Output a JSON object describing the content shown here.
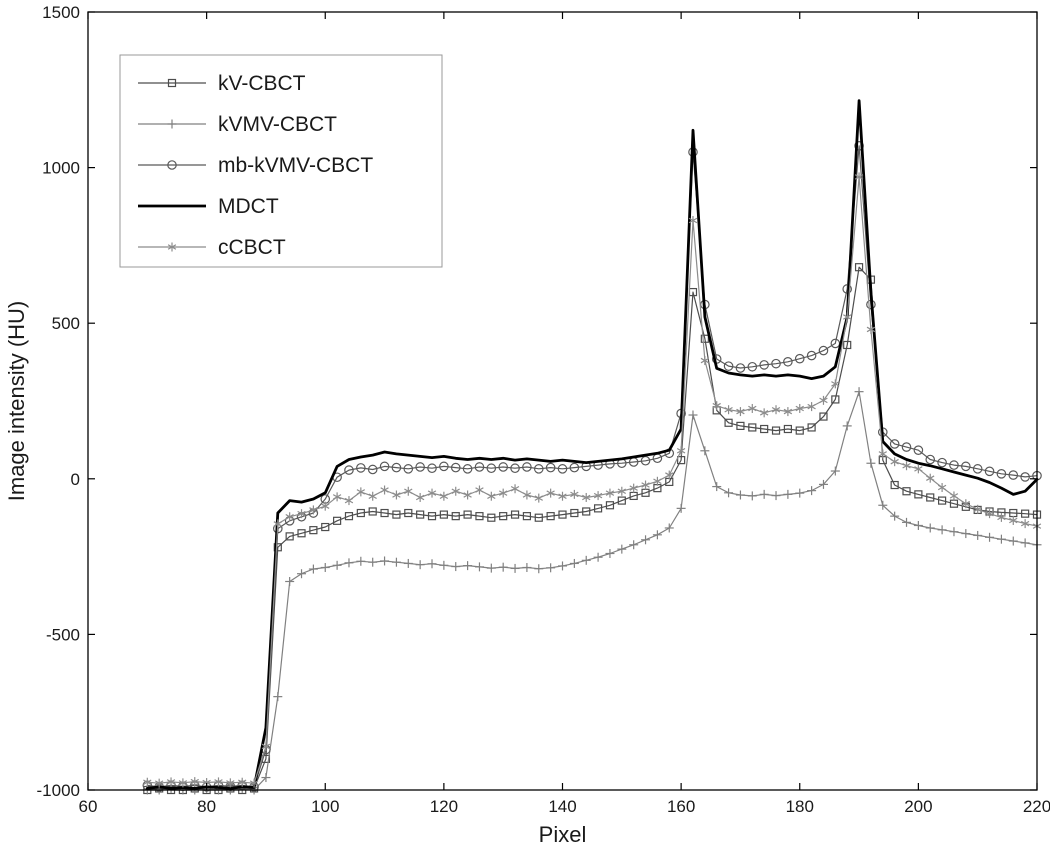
{
  "figure": {
    "background": "#ffffff",
    "text_color": "#1a1a1a",
    "box_color": "#000000",
    "legend_border_color": "#999999"
  },
  "chart_data": {
    "type": "line",
    "title": "",
    "xlabel": "Pixel",
    "ylabel": "Image intensity (HU)",
    "xlim": [
      60,
      220
    ],
    "ylim": [
      -1000,
      1500
    ],
    "xticks": [
      60,
      80,
      100,
      120,
      140,
      160,
      180,
      200,
      220
    ],
    "yticks": [
      -1000,
      -500,
      0,
      500,
      1000,
      1500
    ],
    "grid": false,
    "legend_position": "upper-left",
    "x": [
      70,
      72,
      74,
      76,
      78,
      80,
      82,
      84,
      86,
      88,
      90,
      92,
      94,
      96,
      98,
      100,
      102,
      104,
      106,
      108,
      110,
      112,
      114,
      116,
      118,
      120,
      122,
      124,
      126,
      128,
      130,
      132,
      134,
      136,
      138,
      140,
      142,
      144,
      146,
      148,
      150,
      152,
      154,
      156,
      158,
      160,
      162,
      164,
      166,
      168,
      170,
      172,
      174,
      176,
      178,
      180,
      182,
      184,
      186,
      188,
      190,
      192,
      194,
      196,
      198,
      200,
      202,
      204,
      206,
      208,
      210,
      212,
      214,
      216,
      218,
      220
    ],
    "series": [
      {
        "name": "kV-CBCT",
        "marker": "square",
        "color": "#4d4d4d",
        "linewidth": 1.2,
        "values": [
          -1000,
          -995,
          -1000,
          -1000,
          -995,
          -1000,
          -1000,
          -995,
          -1000,
          -995,
          -900,
          -220,
          -185,
          -175,
          -165,
          -155,
          -135,
          -120,
          -110,
          -105,
          -110,
          -115,
          -110,
          -115,
          -120,
          -115,
          -120,
          -115,
          -120,
          -125,
          -120,
          -115,
          -120,
          -125,
          -120,
          -115,
          -110,
          -105,
          -95,
          -85,
          -70,
          -55,
          -45,
          -30,
          -10,
          60,
          600,
          450,
          220,
          180,
          170,
          165,
          160,
          155,
          160,
          155,
          165,
          200,
          255,
          430,
          680,
          640,
          60,
          -20,
          -40,
          -50,
          -60,
          -70,
          -80,
          -90,
          -100,
          -105,
          -108,
          -110,
          -112,
          -115
        ]
      },
      {
        "name": "kVMV-CBCT",
        "marker": "plus",
        "color": "#808080",
        "linewidth": 1.2,
        "values": [
          -1000,
          -1000,
          -995,
          -1000,
          -1000,
          -995,
          -1000,
          -1000,
          -995,
          -1000,
          -960,
          -700,
          -330,
          -305,
          -290,
          -285,
          -278,
          -270,
          -265,
          -268,
          -264,
          -268,
          -272,
          -276,
          -273,
          -278,
          -282,
          -279,
          -283,
          -287,
          -284,
          -288,
          -285,
          -289,
          -286,
          -280,
          -272,
          -262,
          -252,
          -240,
          -226,
          -212,
          -196,
          -180,
          -158,
          -95,
          205,
          90,
          -25,
          -45,
          -52,
          -55,
          -50,
          -54,
          -50,
          -46,
          -38,
          -18,
          25,
          170,
          280,
          50,
          -85,
          -120,
          -140,
          -150,
          -158,
          -164,
          -170,
          -176,
          -182,
          -188,
          -194,
          -200,
          -206,
          -212
        ]
      },
      {
        "name": "mb-kVMV-CBCT",
        "marker": "circle",
        "color": "#595959",
        "linewidth": 1.2,
        "values": [
          -985,
          -990,
          -985,
          -988,
          -985,
          -990,
          -985,
          -988,
          -985,
          -990,
          -870,
          -160,
          -135,
          -122,
          -110,
          -65,
          5,
          28,
          35,
          30,
          40,
          36,
          32,
          38,
          34,
          40,
          36,
          32,
          38,
          34,
          38,
          34,
          38,
          32,
          36,
          32,
          36,
          40,
          44,
          48,
          50,
          54,
          58,
          66,
          82,
          210,
          1050,
          560,
          385,
          362,
          356,
          360,
          366,
          370,
          376,
          386,
          396,
          412,
          435,
          610,
          1070,
          560,
          150,
          112,
          102,
          92,
          62,
          52,
          44,
          40,
          32,
          24,
          16,
          12,
          6,
          10
        ]
      },
      {
        "name": "MDCT",
        "marker": "none",
        "color": "#000000",
        "linewidth": 2.8,
        "values": [
          -995,
          -990,
          -995,
          -992,
          -995,
          -990,
          -992,
          -995,
          -990,
          -992,
          -800,
          -110,
          -70,
          -75,
          -65,
          -45,
          40,
          62,
          70,
          76,
          86,
          80,
          76,
          72,
          68,
          72,
          66,
          62,
          66,
          62,
          66,
          60,
          64,
          60,
          56,
          60,
          56,
          52,
          56,
          60,
          64,
          70,
          76,
          82,
          92,
          160,
          1120,
          520,
          355,
          340,
          334,
          330,
          334,
          330,
          334,
          330,
          322,
          330,
          360,
          520,
          1215,
          600,
          120,
          80,
          62,
          50,
          42,
          32,
          22,
          12,
          2,
          -12,
          -30,
          -50,
          -40,
          -2
        ]
      },
      {
        "name": "cCBCT",
        "marker": "asterisk",
        "color": "#8c8c8c",
        "linewidth": 1.2,
        "values": [
          -975,
          -978,
          -974,
          -977,
          -973,
          -976,
          -974,
          -977,
          -975,
          -978,
          -860,
          -145,
          -122,
          -112,
          -100,
          -88,
          -58,
          -70,
          -42,
          -56,
          -36,
          -52,
          -40,
          -60,
          -46,
          -56,
          -40,
          -52,
          -36,
          -56,
          -46,
          -32,
          -52,
          -62,
          -46,
          -56,
          -50,
          -60,
          -54,
          -46,
          -40,
          -30,
          -20,
          -8,
          12,
          90,
          830,
          380,
          235,
          222,
          216,
          226,
          212,
          222,
          216,
          226,
          232,
          252,
          305,
          520,
          970,
          480,
          80,
          55,
          42,
          32,
          2,
          -28,
          -55,
          -80,
          -98,
          -112,
          -124,
          -134,
          -144,
          -152
        ]
      }
    ]
  }
}
